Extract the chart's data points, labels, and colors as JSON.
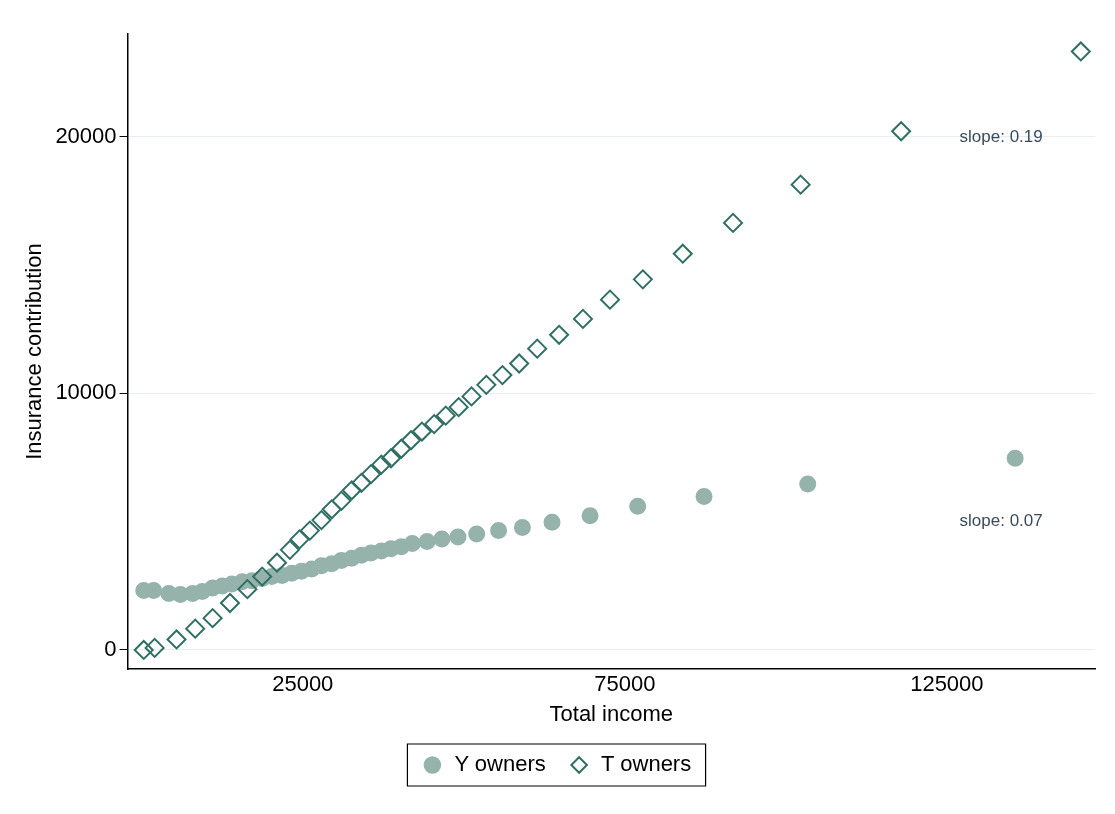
{
  "chart_data": {
    "type": "scatter",
    "xlabel": "Total income",
    "ylabel": "Insurance contribution",
    "xlim": [
      -2200,
      148000
    ],
    "xticks": [
      25000,
      75000,
      125000
    ],
    "ylim": [
      -750,
      24000
    ],
    "yticks": [
      0,
      10000,
      20000
    ],
    "grid": "y",
    "legend": "bottom",
    "series": [
      {
        "name": "Y owners",
        "color": "#95b3aa",
        "marker": "circle",
        "x": [
          310,
          1850,
          4200,
          6000,
          7900,
          9400,
          11000,
          12500,
          14000,
          15600,
          17100,
          18700,
          20200,
          21800,
          23300,
          24800,
          26400,
          27900,
          29500,
          31000,
          32600,
          34100,
          35600,
          37200,
          38700,
          40300,
          42000,
          44300,
          46600,
          49100,
          52000,
          55400,
          59100,
          63700,
          69600,
          77000,
          87300,
          103400,
          135600
        ],
        "values": [
          2320,
          2320,
          2200,
          2160,
          2200,
          2280,
          2410,
          2490,
          2570,
          2660,
          2700,
          2780,
          2860,
          2900,
          2990,
          3070,
          3150,
          3280,
          3360,
          3490,
          3570,
          3690,
          3780,
          3860,
          3940,
          4020,
          4150,
          4230,
          4320,
          4400,
          4520,
          4650,
          4770,
          4980,
          5230,
          5600,
          5980,
          6470,
          7470
        ]
      },
      {
        "name": "T owners",
        "color": "#2f6f64",
        "marker": "diamond",
        "x": [
          310,
          2000,
          5400,
          8300,
          11000,
          13700,
          16400,
          18700,
          21000,
          23000,
          24500,
          26100,
          27900,
          29500,
          31000,
          32600,
          34100,
          35600,
          37200,
          38700,
          40300,
          41800,
          43500,
          45400,
          47200,
          49200,
          51200,
          53500,
          56000,
          58600,
          61400,
          64800,
          68500,
          72700,
          77800,
          84000,
          91800,
          102300,
          117900,
          145800
        ],
        "values": [
          0,
          80,
          410,
          830,
          1240,
          1830,
          2370,
          2860,
          3400,
          3900,
          4310,
          4650,
          5060,
          5480,
          5810,
          6220,
          6510,
          6850,
          7220,
          7470,
          7840,
          8170,
          8510,
          8800,
          9130,
          9460,
          9880,
          10330,
          10710,
          11160,
          11740,
          12280,
          12900,
          13650,
          14440,
          15440,
          16640,
          18130,
          20210,
          23320
        ]
      }
    ],
    "annotations": [
      "slope: 0.19",
      "slope: 0.07"
    ]
  }
}
